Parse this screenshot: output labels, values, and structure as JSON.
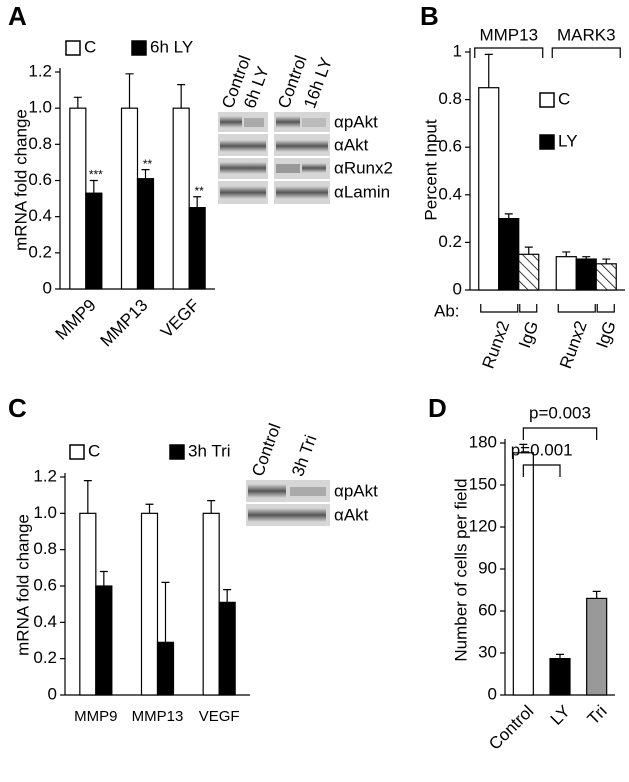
{
  "chart_data": [
    {
      "type": "bar",
      "panel": "A",
      "y_label": "mRNA fold change",
      "categories": [
        "MMP9",
        "MMP13",
        "VEGF"
      ],
      "series": [
        {
          "name": "C",
          "color": "#ffffff",
          "values": [
            1.0,
            1.0,
            1.0
          ],
          "errors": [
            0.06,
            0.19,
            0.13
          ]
        },
        {
          "name": "6h LY",
          "color": "#000000",
          "values": [
            0.53,
            0.61,
            0.45
          ],
          "errors": [
            0.07,
            0.05,
            0.06
          ]
        }
      ],
      "significance": [
        "***",
        "**",
        "**"
      ],
      "ylim": [
        0,
        1.2
      ],
      "yticks": [
        0,
        0.2,
        0.4,
        0.6,
        0.8,
        {
          "value": 1,
          "label": "1.0"
        },
        1.2
      ],
      "blot": {
        "columns": [
          "Control",
          "6h LY",
          "Control",
          "16h LY"
        ],
        "rows": [
          "αpAkt",
          "αAkt",
          "αRunx2",
          "αLamin"
        ]
      }
    },
    {
      "type": "bar",
      "panel": "B",
      "y_label": "Percent Input",
      "categories": [
        "MMP13",
        "MARK3"
      ],
      "series": [
        {
          "name": "C",
          "color": "#ffffff",
          "values": [
            0.85,
            0.14
          ],
          "errors": [
            0.14,
            0.02
          ]
        },
        {
          "name": "LY",
          "color": "#000000",
          "values": [
            0.3,
            0.13
          ],
          "errors": [
            0.02,
            0.01
          ]
        },
        {
          "color": "#ffffff",
          "pattern": "hatch",
          "values": [
            0.15,
            0.11
          ],
          "errors": [
            0.03,
            0.02
          ]
        }
      ],
      "antibody_label": "Ab:",
      "antibodies": [
        "Runx2",
        "IgG",
        "Runx2",
        "IgG"
      ],
      "ylim": [
        0,
        1
      ],
      "yticks": [
        0,
        0.2,
        0.4,
        0.6,
        0.8,
        1
      ]
    },
    {
      "type": "bar",
      "panel": "C",
      "y_label": "mRNA fold change",
      "categories": [
        "MMP9",
        "MMP13",
        "VEGF"
      ],
      "series": [
        {
          "name": "C",
          "color": "#ffffff",
          "values": [
            1.0,
            1.0,
            1.0
          ],
          "errors": [
            0.18,
            0.05,
            0.07
          ]
        },
        {
          "name": "3h Tri",
          "color": "#000000",
          "values": [
            0.6,
            0.29,
            0.51
          ],
          "errors": [
            0.08,
            0.33,
            0.07
          ]
        }
      ],
      "ylim": [
        0,
        1.2
      ],
      "yticks": [
        0,
        0.2,
        0.4,
        0.6,
        0.8,
        {
          "value": 1,
          "label": "1.0"
        },
        1.2
      ],
      "blot": {
        "columns": [
          "Control",
          "3h Tri"
        ],
        "rows": [
          "αpAkt",
          "αAkt"
        ]
      }
    },
    {
      "type": "bar",
      "panel": "D",
      "y_label": "Number of cells per field",
      "categories": [
        "Control",
        "LY",
        "Tri"
      ],
      "values": [
        173,
        26,
        69
      ],
      "errors": [
        6,
        3,
        5
      ],
      "colors": [
        "#ffffff",
        "#000000",
        "#999999"
      ],
      "annotations": [
        "p=0.003",
        "p=0.001"
      ],
      "ylim": [
        0,
        180
      ],
      "yticks": [
        0,
        30,
        60,
        90,
        120,
        150,
        180
      ]
    }
  ]
}
